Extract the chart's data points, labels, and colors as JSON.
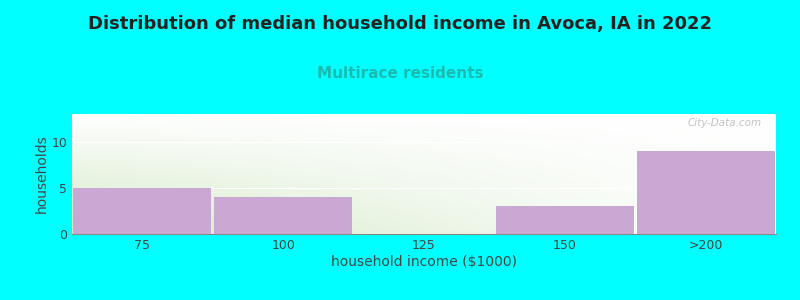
{
  "title": "Distribution of median household income in Avoca, IA in 2022",
  "subtitle": "Multirace residents",
  "xlabel": "household income ($1000)",
  "ylabel": "households",
  "categories": [
    "75",
    "100",
    "125",
    "150",
    ">200"
  ],
  "values": [
    5,
    4,
    0,
    3,
    9
  ],
  "bar_color": "#C9A8D4",
  "background_color": "#00FFFF",
  "plot_bg_top_left": "#D4EAC8",
  "plot_bg_top_right": "#FFFFFF",
  "plot_bg_bottom_left": "#D4EAC8",
  "plot_bg_bottom_right": "#FFFFFF",
  "ylim": [
    0,
    13
  ],
  "yticks": [
    0,
    5,
    10
  ],
  "title_fontsize": 13,
  "subtitle_fontsize": 11,
  "subtitle_color": "#1ABAB0",
  "tick_label_fontsize": 9,
  "axis_label_fontsize": 10,
  "watermark": "City-Data.com",
  "bar_width": 0.98
}
